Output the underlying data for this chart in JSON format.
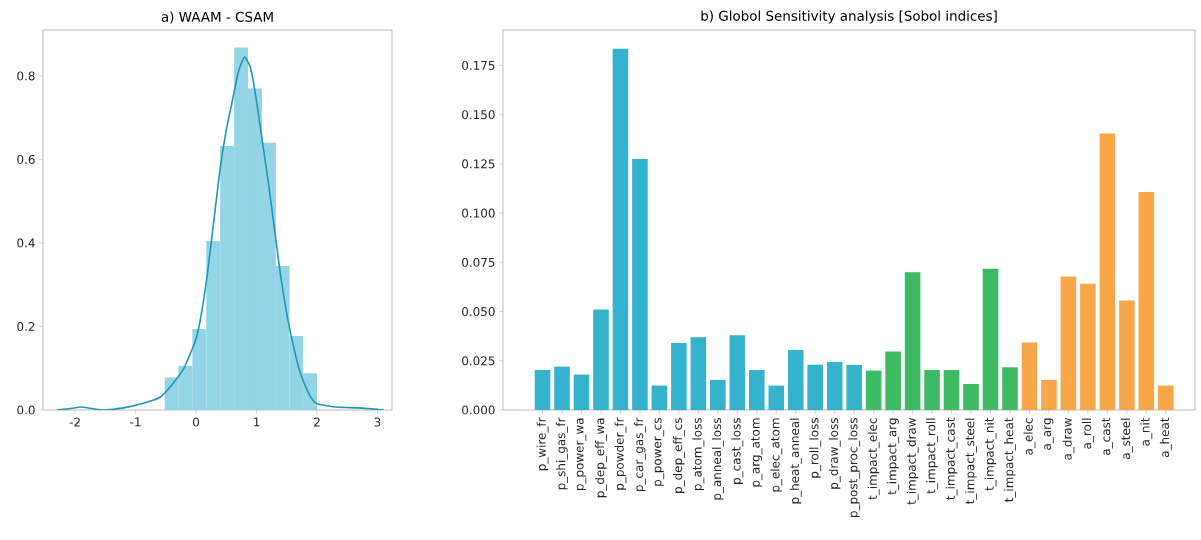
{
  "chart_data": [
    {
      "type": "histogram",
      "title": "a) WAAM - CSAM",
      "xlim": [
        -2.53,
        3.24
      ],
      "ylim": [
        0,
        0.91
      ],
      "xticks": [
        -2,
        -1,
        0,
        1,
        2,
        3
      ],
      "yticks": [
        {
          "value": 0,
          "label": "0.0"
        },
        {
          "value": 0.2,
          "label": "0.2"
        },
        {
          "value": 0.4,
          "label": "0.4"
        },
        {
          "value": 0.6,
          "label": "0.6"
        },
        {
          "value": 0.8,
          "label": "0.8"
        }
      ],
      "series": [
        {
          "type": "histogram",
          "color": "#93d5e6",
          "bins": [
            -0.517,
            -0.29,
            -0.06,
            0.17,
            0.4,
            0.63,
            0.86,
            1.09,
            1.32,
            1.545,
            1.77,
            2.0
          ],
          "values": [
            0.078,
            0.106,
            0.194,
            0.405,
            0.632,
            0.868,
            0.77,
            0.64,
            0.345,
            0.177,
            0.088
          ]
        },
        {
          "type": "line",
          "color": "#1f97b5",
          "x": [
            -2.3,
            -2.1,
            -1.9,
            -1.7,
            -1.5,
            -1.2,
            -0.9,
            -0.6,
            -0.4,
            -0.2,
            0,
            0.1,
            0.2,
            0.3,
            0.4,
            0.5,
            0.6,
            0.7,
            0.8,
            0.9,
            1.0,
            1.1,
            1.2,
            1.3,
            1.4,
            1.5,
            1.6,
            1.7,
            1.8,
            1.9,
            2.0,
            2.3,
            2.7,
            3.1
          ],
          "values": [
            0.0,
            0.003,
            0.007,
            0.003,
            0.0,
            0.005,
            0.015,
            0.03,
            0.06,
            0.1,
            0.17,
            0.24,
            0.34,
            0.46,
            0.58,
            0.67,
            0.74,
            0.81,
            0.845,
            0.82,
            0.74,
            0.64,
            0.54,
            0.43,
            0.32,
            0.23,
            0.16,
            0.1,
            0.06,
            0.03,
            0.015,
            0.007,
            0.005,
            0.0
          ]
        }
      ]
    },
    {
      "type": "bar",
      "title": "b) Globol Sensitivity analysis [Sobol indices]",
      "ylim": [
        0,
        0.193
      ],
      "yticks": [
        {
          "value": 0,
          "label": "0.000"
        },
        {
          "value": 0.025,
          "label": "0.025"
        },
        {
          "value": 0.05,
          "label": "0.050"
        },
        {
          "value": 0.075,
          "label": "0.075"
        },
        {
          "value": 0.1,
          "label": "0.100"
        },
        {
          "value": 0.125,
          "label": "0.125"
        },
        {
          "value": 0.15,
          "label": "0.150"
        },
        {
          "value": 0.175,
          "label": "0.175"
        }
      ],
      "categories": [
        "p_wire_fr",
        "p_shi_gas_fr",
        "p_power_wa",
        "p_dep_eff_wa",
        "p_powder_fr",
        "p_car_gas_fr",
        "p_power_cs",
        "p_dep_eff_cs",
        "p_atom_loss",
        "p_anneal_loss",
        "p_cast_loss",
        "p_arg_atom",
        "p_elec_atom",
        "p_heat_anneal",
        "p_roll_loss",
        "p_draw_loss",
        "p_post_proc_loss",
        "t_impact_elec",
        "t_impact_arg",
        "t_impact_draw",
        "t_impact_roll",
        "t_impact_cast",
        "t_impact_steel",
        "t_impact_nit",
        "t_impact_heat",
        "a_elec",
        "a_arg",
        "a_draw",
        "a_roll",
        "a_cast",
        "a_steel",
        "a_nit",
        "a_heat"
      ],
      "values": [
        0.0203,
        0.022,
        0.018,
        0.051,
        0.1835,
        0.1275,
        0.0124,
        0.034,
        0.037,
        0.0153,
        0.038,
        0.0203,
        0.0124,
        0.0305,
        0.023,
        0.0244,
        0.0229,
        0.02,
        0.0297,
        0.0699,
        0.0203,
        0.0203,
        0.0132,
        0.0717,
        0.0217,
        0.0343,
        0.0153,
        0.0678,
        0.0641,
        0.1404,
        0.0556,
        0.1107,
        0.0124
      ],
      "colors": [
        "#36b3cc",
        "#36b3cc",
        "#36b3cc",
        "#36b3cc",
        "#36b3cc",
        "#36b3cc",
        "#36b3cc",
        "#36b3cc",
        "#36b3cc",
        "#36b3cc",
        "#36b3cc",
        "#36b3cc",
        "#36b3cc",
        "#36b3cc",
        "#36b3cc",
        "#36b3cc",
        "#36b3cc",
        "#3dba63",
        "#3dba63",
        "#3dba63",
        "#3dba63",
        "#3dba63",
        "#3dba63",
        "#3dba63",
        "#3dba63",
        "#f5a74a",
        "#f5a74a",
        "#f5a74a",
        "#f5a74a",
        "#f5a74a",
        "#f5a74a",
        "#f5a74a",
        "#f5a74a"
      ]
    }
  ]
}
